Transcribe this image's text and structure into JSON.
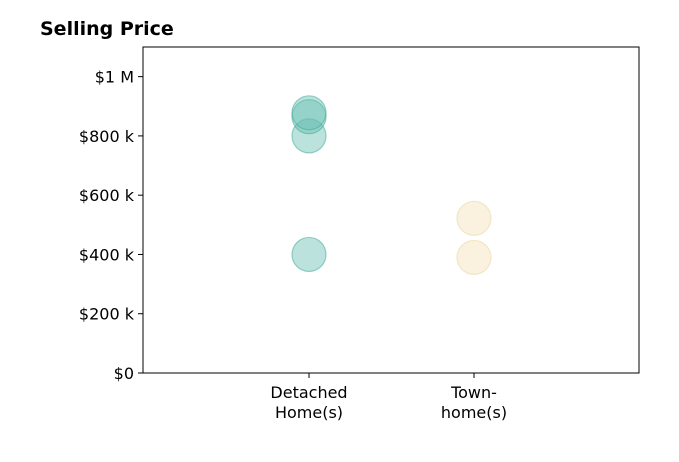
{
  "chart_data": {
    "type": "scatter",
    "title": "Selling Price",
    "xlabel": "",
    "ylabel": "",
    "categories": [
      [
        "Detached",
        "Home(s)"
      ],
      [
        "Town-",
        "home(s)"
      ]
    ],
    "ylim": [
      0,
      1100000
    ],
    "yticks": [
      {
        "value": 0,
        "label": "$0"
      },
      {
        "value": 200000,
        "label": "$200 k"
      },
      {
        "value": 400000,
        "label": "$400 k"
      },
      {
        "value": 600000,
        "label": "$600 k"
      },
      {
        "value": 800000,
        "label": "$800 k"
      },
      {
        "value": 1000000,
        "label": "$1 M"
      }
    ],
    "grid": false,
    "legend": "none",
    "series": [
      {
        "category_index": 0,
        "color": "#69bfb2",
        "stroke": "#3aa893",
        "values": [
          400000,
          800000,
          865000,
          878000
        ]
      },
      {
        "category_index": 1,
        "color": "#f4e2b8",
        "stroke": "#e7d39c",
        "values": [
          390000,
          522000
        ]
      }
    ]
  }
}
